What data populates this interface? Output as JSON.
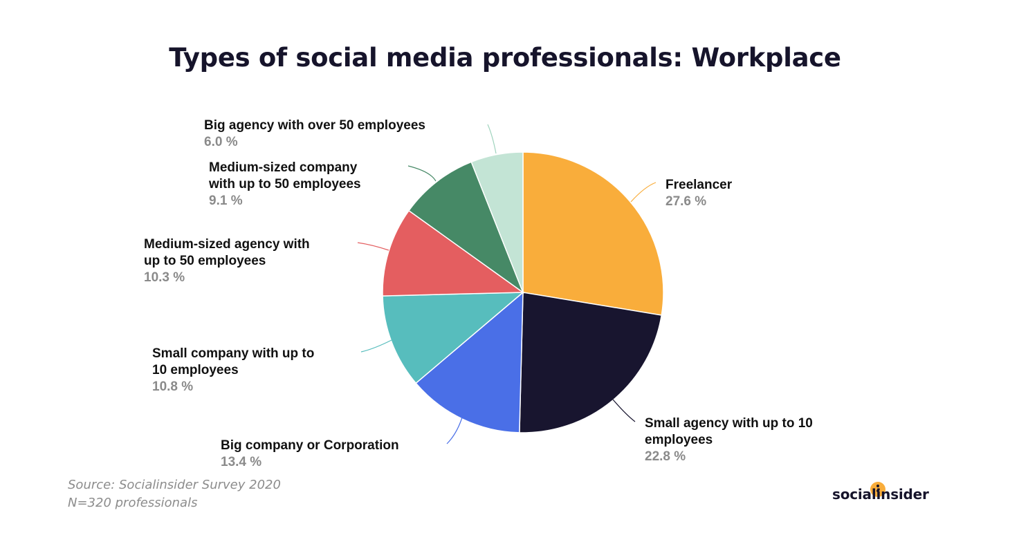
{
  "title": "Types of social media professionals: Workplace",
  "source": {
    "line1": "Source: Socialinsider Survey 2020",
    "line2": "N=320 professionals"
  },
  "logo": {
    "text": "socialinsider",
    "accent_color": "#f9ad3b"
  },
  "chart_data": {
    "type": "pie",
    "title": "Types of social media professionals: Workplace",
    "unit": "%",
    "slices": [
      {
        "label": "Freelancer",
        "value": 27.6,
        "value_text": "27.6 %",
        "color": "#f9ad3b"
      },
      {
        "label": "Small agency with up to 10 employees",
        "value": 22.8,
        "value_text": "22.8 %",
        "color": "#18152f"
      },
      {
        "label": "Big company or Corporation",
        "value": 13.4,
        "value_text": "13.4 %",
        "color": "#4a6fe7"
      },
      {
        "label": "Small company with up to 10 employees",
        "value": 10.8,
        "value_text": "10.8 %",
        "color": "#57bdbd"
      },
      {
        "label": "Medium-sized agency with up to 50 employees",
        "value": 10.3,
        "value_text": "10.3 %",
        "color": "#e45e60"
      },
      {
        "label": "Medium-sized company with up to 50 employees",
        "value": 9.1,
        "value_text": "9.1 %",
        "color": "#468966"
      },
      {
        "label": "Big agency with over 50 employees",
        "value": 6.0,
        "value_text": "6.0 %",
        "color": "#c3e4d5"
      }
    ]
  }
}
